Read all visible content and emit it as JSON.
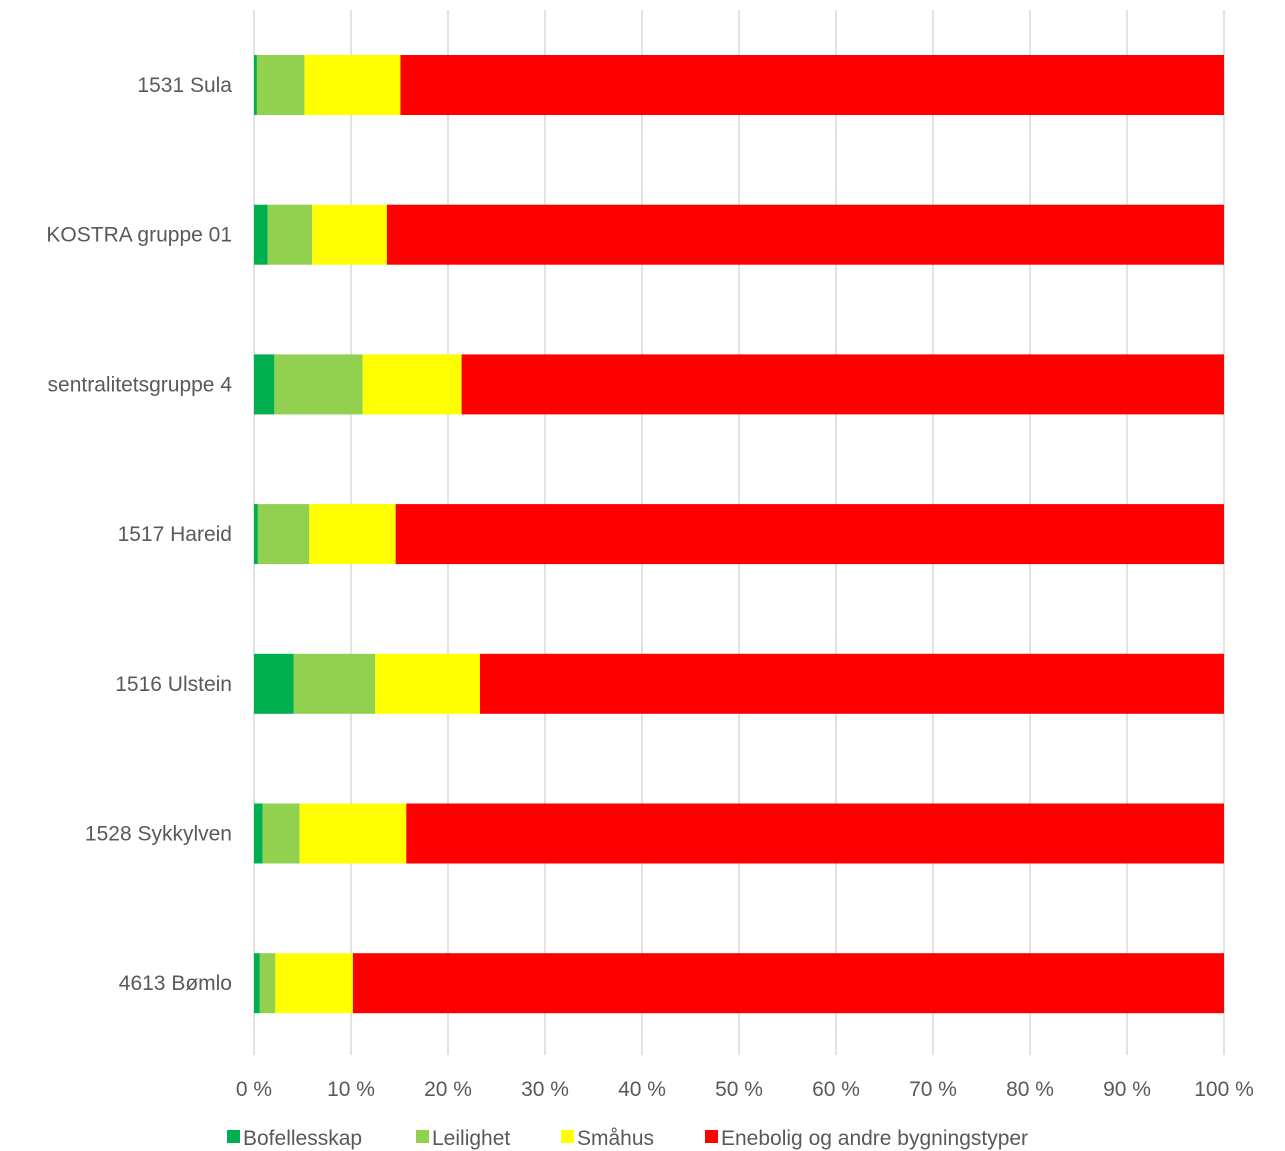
{
  "chart_data": {
    "type": "bar",
    "orientation": "horizontal",
    "stacked": "percent",
    "categories": [
      "1531 Sula",
      "KOSTRA gruppe 01",
      "sentralitetsgruppe 4",
      "1517 Hareid",
      "1516 Ulstein",
      "1528 Sykkylven",
      "4613 Bømlo"
    ],
    "series": [
      {
        "name": "Bofellesskap",
        "color": "#00b050",
        "values": [
          0.3,
          1.4,
          2.1,
          0.4,
          4.1,
          0.9,
          0.6
        ]
      },
      {
        "name": "Leilighet",
        "color": "#92d050",
        "values": [
          4.9,
          4.6,
          9.1,
          5.3,
          8.4,
          3.8,
          1.6
        ]
      },
      {
        "name": "Småhus",
        "color": "#ffff00",
        "values": [
          9.9,
          7.7,
          10.2,
          8.9,
          10.8,
          11.0,
          8.0
        ]
      },
      {
        "name": "Enebolig og andre bygningstyper",
        "color": "#ff0000",
        "values": [
          84.9,
          86.3,
          78.6,
          85.4,
          76.7,
          84.3,
          89.8
        ]
      }
    ],
    "xticks": [
      "0 %",
      "10 %",
      "20 %",
      "30 %",
      "40 %",
      "50 %",
      "60 %",
      "70 %",
      "80 %",
      "90 %",
      "100 %"
    ],
    "xlim": [
      0,
      100
    ],
    "grid": "vertical",
    "legend_position": "bottom"
  }
}
